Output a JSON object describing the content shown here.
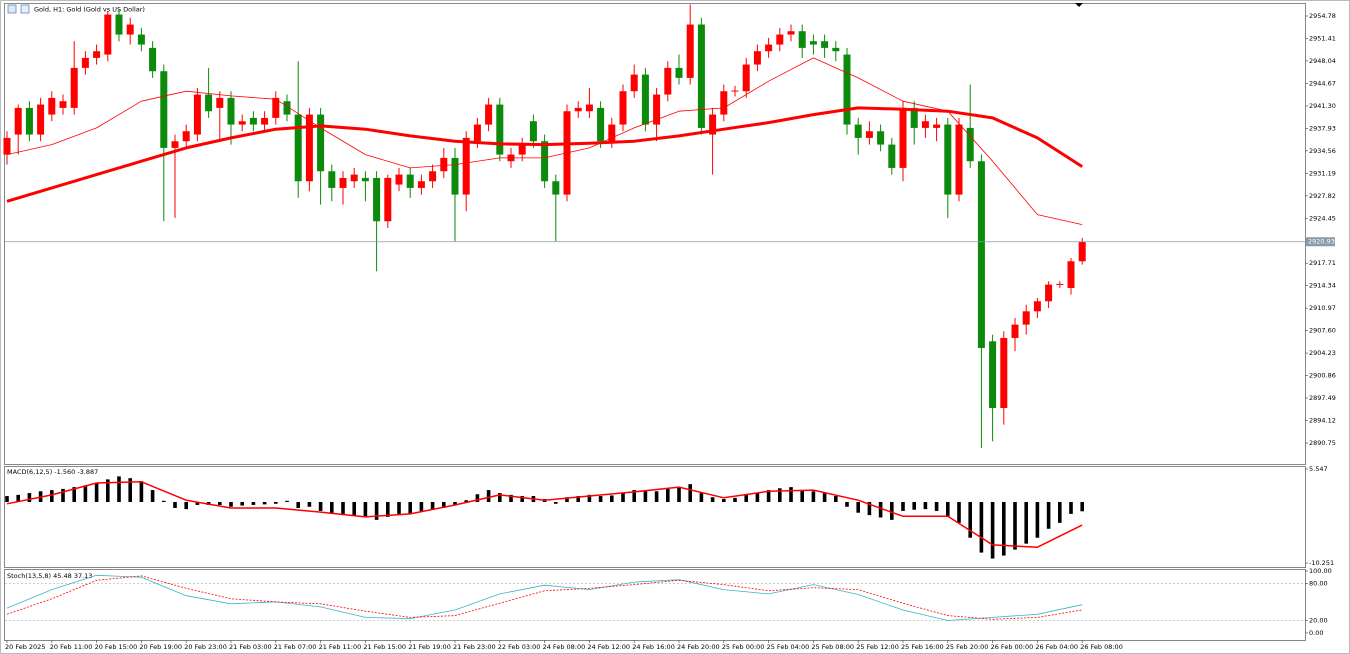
{
  "chart_data": [
    {
      "type": "candlestick",
      "title": "Gold, H1:  Gold (Gold vs US Dollar)",
      "categories": [
        "20 Feb 2025",
        "20 Feb 11:00",
        "20 Feb 15:00",
        "20 Feb 19:00",
        "20 Feb 23:00",
        "21 Feb 03:00",
        "21 Feb 07:00",
        "21 Feb 11:00",
        "21 Feb 15:00",
        "21 Feb 19:00",
        "21 Feb 23:00",
        "22 Feb 03:00",
        "24 Feb 08:00",
        "24 Feb 12:00",
        "24 Feb 16:00",
        "24 Feb 20:00",
        "25 Feb 00:00",
        "25 Feb 04:00",
        "25 Feb 08:00",
        "25 Feb 12:00",
        "25 Feb 16:00",
        "25 Feb 20:00",
        "26 Feb 00:00",
        "26 Feb 04:00",
        "26 Feb 08:00"
      ],
      "up_color": "#ff0000",
      "down_color": "#0b8a0b",
      "ohlc": [
        [
          2934,
          2937.5,
          2932.5,
          2936.5
        ],
        [
          2937,
          2941.5,
          2934,
          2941
        ],
        [
          2941,
          2942,
          2936,
          2937
        ],
        [
          2937,
          2942.5,
          2936,
          2941.5
        ],
        [
          2940,
          2943.5,
          2939,
          2942.5
        ],
        [
          2941,
          2943,
          2940,
          2942
        ],
        [
          2941,
          2951,
          2940,
          2947
        ],
        [
          2947,
          2949.5,
          2946,
          2948.5
        ],
        [
          2948.5,
          2950.5,
          2947.5,
          2949.5
        ],
        [
          2949,
          2955.5,
          2948,
          2955
        ],
        [
          2955,
          2955.8,
          2951,
          2952
        ],
        [
          2952,
          2954.5,
          2950.5,
          2953.5
        ],
        [
          2952,
          2953,
          2949.5,
          2950.5
        ],
        [
          2950,
          2951,
          2945.5,
          2946.5
        ],
        [
          2946.5,
          2947.5,
          2924,
          2935
        ],
        [
          2935,
          2937,
          2924.5,
          2936
        ],
        [
          2936,
          2938.5,
          2935,
          2937.5
        ],
        [
          2937,
          2944,
          2936,
          2943
        ],
        [
          2943,
          2947,
          2939.5,
          2940.5
        ],
        [
          2941,
          2943.5,
          2936,
          2942.5
        ],
        [
          2942.5,
          2943.5,
          2935.5,
          2938.5
        ],
        [
          2938.5,
          2940,
          2937.5,
          2939
        ],
        [
          2939.5,
          2940.5,
          2937.5,
          2938.5
        ],
        [
          2938.5,
          2940.5,
          2937.5,
          2939.5
        ],
        [
          2939.5,
          2943.5,
          2938.5,
          2942.5
        ],
        [
          2942,
          2943,
          2939,
          2940
        ],
        [
          2940,
          2948,
          2927.5,
          2930
        ],
        [
          2930,
          2941,
          2928.5,
          2940
        ],
        [
          2940,
          2941,
          2926.5,
          2931.5
        ],
        [
          2931.5,
          2932.5,
          2927,
          2929
        ],
        [
          2929,
          2931.5,
          2926.5,
          2930.5
        ],
        [
          2930,
          2932,
          2929,
          2931
        ],
        [
          2930.5,
          2931.5,
          2927,
          2930
        ],
        [
          2930.5,
          2931.5,
          2916.5,
          2924
        ],
        [
          2924,
          2931,
          2923,
          2930.5
        ],
        [
          2929.5,
          2932,
          2928.5,
          2931
        ],
        [
          2931,
          2932,
          2927.5,
          2929
        ],
        [
          2929,
          2931,
          2928,
          2930
        ],
        [
          2930,
          2932.5,
          2929,
          2931.5
        ],
        [
          2931.5,
          2935,
          2930.5,
          2933.5
        ],
        [
          2933.5,
          2935,
          2921,
          2928
        ],
        [
          2928,
          2937.5,
          2925.5,
          2936.5
        ],
        [
          2936,
          2939.5,
          2935,
          2938.5
        ],
        [
          2938.5,
          2942.5,
          2937.5,
          2941.5
        ],
        [
          2941.5,
          2942.5,
          2933,
          2934
        ],
        [
          2933,
          2935,
          2932,
          2934
        ],
        [
          2934,
          2936.5,
          2933,
          2935.5
        ],
        [
          2939,
          2940,
          2935,
          2936
        ],
        [
          2936,
          2937,
          2929,
          2930
        ],
        [
          2930,
          2931,
          2921,
          2928
        ],
        [
          2928,
          2941.5,
          2927,
          2940.5
        ],
        [
          2940.5,
          2942,
          2939.5,
          2941
        ],
        [
          2940.5,
          2944,
          2939.5,
          2941.5
        ],
        [
          2941,
          2942,
          2935,
          2936
        ],
        [
          2936,
          2939.5,
          2935,
          2938.5
        ],
        [
          2938.5,
          2944.5,
          2937.5,
          2943.5
        ],
        [
          2943.5,
          2947.5,
          2942.5,
          2946
        ],
        [
          2946,
          2947,
          2937.5,
          2938.5
        ],
        [
          2938.5,
          2944,
          2936,
          2943
        ],
        [
          2943,
          2948,
          2942,
          2947
        ],
        [
          2947,
          2949,
          2944.5,
          2945.5
        ],
        [
          2945.5,
          2956.5,
          2944.5,
          2953.5
        ],
        [
          2953.5,
          2954.5,
          2937,
          2938
        ],
        [
          2937,
          2941,
          2931,
          2940
        ],
        [
          2940,
          2944.5,
          2939,
          2943.5
        ],
        [
          2943.5,
          2944.3,
          2942.7,
          2943.6
        ],
        [
          2943.5,
          2948.5,
          2942.5,
          2947.5
        ],
        [
          2947.5,
          2950.5,
          2946.5,
          2949.5
        ],
        [
          2949.5,
          2951.5,
          2948.5,
          2950.5
        ],
        [
          2950.5,
          2953,
          2949.5,
          2952
        ],
        [
          2952,
          2953.5,
          2951,
          2952.5
        ],
        [
          2952.5,
          2953.5,
          2948.5,
          2950
        ],
        [
          2951,
          2952,
          2949,
          2950.5
        ],
        [
          2951,
          2952,
          2948.5,
          2950
        ],
        [
          2950,
          2951,
          2948,
          2949.5
        ],
        [
          2949,
          2950,
          2937,
          2938.5
        ],
        [
          2938.5,
          2939.5,
          2934,
          2936.5
        ],
        [
          2936.5,
          2939,
          2935.5,
          2937.5
        ],
        [
          2937.5,
          2938.5,
          2934.5,
          2935.5
        ],
        [
          2935.5,
          2936.5,
          2931,
          2932
        ],
        [
          2932,
          2942,
          2930,
          2941
        ],
        [
          2941,
          2942,
          2935.5,
          2938
        ],
        [
          2938,
          2940,
          2936.5,
          2939
        ],
        [
          2938,
          2939.5,
          2936,
          2938.5
        ],
        [
          2938.5,
          2939.5,
          2924.5,
          2928
        ],
        [
          2928,
          2939.5,
          2927,
          2938.5
        ],
        [
          2938,
          2944.5,
          2932,
          2933
        ],
        [
          2933,
          2934,
          2890,
          2905
        ],
        [
          2906,
          2907,
          2891,
          2896
        ],
        [
          2896,
          2907.5,
          2893.5,
          2906.5
        ],
        [
          2906.5,
          2909.5,
          2904.5,
          2908.5
        ],
        [
          2908.5,
          2911.5,
          2907,
          2910.5
        ],
        [
          2910.5,
          2912.5,
          2909.5,
          2912
        ],
        [
          2912,
          2915,
          2911,
          2914.5
        ],
        [
          2914.5,
          2915,
          2914,
          2914.6
        ],
        [
          2914,
          2918.5,
          2913,
          2918
        ],
        [
          2918,
          2921.5,
          2917.5,
          2920.93
        ]
      ],
      "series": [
        {
          "color": "#ff0000",
          "line_width": 0.8,
          "values": [
            2934.0,
            2935.5,
            2938.0,
            2942.0,
            2943.5,
            2942.8,
            2942.3,
            2938.0,
            2934.0,
            2932.0,
            2932.5,
            2933.5,
            2933.5,
            2935.0,
            2938.0,
            2940.5,
            2941.0,
            2945.0,
            2948.5,
            2945.5,
            2942.0,
            2940.5,
            2933.0,
            2925.0,
            2923.5
          ]
        },
        {
          "color": "#ff0000",
          "line_width": 3,
          "values": [
            2927.0,
            2929.0,
            2931.0,
            2933.0,
            2935.0,
            2936.5,
            2937.8,
            2938.3,
            2937.8,
            2936.8,
            2936.0,
            2935.6,
            2935.5,
            2935.7,
            2936.0,
            2936.8,
            2937.8,
            2938.8,
            2940.0,
            2941.0,
            2940.8,
            2940.5,
            2939.5,
            2936.5,
            2932.2
          ]
        }
      ],
      "current_price": 2920.93,
      "ylim": [
        2887.6,
        2956.58
      ],
      "yticks": [
        2954.78,
        2951.41,
        2948.04,
        2944.67,
        {
          "value": 2941.3,
          "label": "2941.30"
        },
        2937.93,
        2934.56,
        2931.19,
        2927.82,
        2924.45,
        2917.71,
        2914.34,
        2910.97,
        {
          "value": 2907.6,
          "label": "2907.60"
        },
        2904.23,
        2900.86,
        2897.49,
        2894.12,
        2890.75
      ]
    },
    {
      "type": "bar",
      "title": "MACD(6,12,5) -1.560 -3.887",
      "color": "#000000",
      "values": [
        1.0,
        1.2,
        1.5,
        1.8,
        2.0,
        2.2,
        2.5,
        2.8,
        3.2,
        3.8,
        4.3,
        4.0,
        3.5,
        2.0,
        0.2,
        -1.0,
        -1.2,
        -0.5,
        -0.5,
        -0.5,
        -0.8,
        -0.6,
        -0.5,
        -0.4,
        -0.3,
        0.2,
        -1.0,
        -0.8,
        -1.5,
        -2.0,
        -2.2,
        -2.3,
        -2.5,
        -3.0,
        -2.5,
        -2.0,
        -2.0,
        -1.6,
        -1.3,
        -1.0,
        -0.6,
        0.3,
        1.3,
        2.0,
        1.5,
        1.2,
        1.0,
        1.0,
        0.5,
        -0.3,
        0.8,
        1.0,
        1.2,
        1.0,
        1.1,
        1.5,
        2.0,
        2.0,
        1.8,
        2.2,
        2.5,
        3.0,
        1.5,
        0.8,
        0.5,
        0.7,
        1.2,
        1.5,
        2.0,
        2.3,
        2.5,
        2.0,
        1.8,
        1.5,
        1.0,
        -0.8,
        -1.8,
        -2.2,
        -2.6,
        -3.0,
        -1.5,
        -1.3,
        -1.2,
        -1.5,
        -2.5,
        -3.5,
        -6.0,
        -8.5,
        -9.5,
        -9.0,
        -8.0,
        -7.0,
        -6.0,
        -4.5,
        -3.5,
        -2.0,
        -1.56
      ],
      "series": [
        {
          "color": "#ff0000",
          "line_width": 1.5,
          "values": [
            -0.3,
            1.2,
            3.2,
            3.4,
            0.3,
            -1.0,
            -1.0,
            -1.7,
            -2.5,
            -2.0,
            -0.5,
            1.2,
            0.3,
            1.0,
            1.7,
            2.5,
            0.7,
            1.8,
            2.0,
            0.3,
            -2.4,
            -2.4,
            -7.2,
            -7.6,
            -3.887
          ]
        }
      ],
      "ylim": [
        -10.92,
        5.88
      ],
      "yticks": [
        5.547,
        -10.251
      ]
    },
    {
      "type": "line",
      "title": "Stoch(13,5,8) 45.48 37.13",
      "series": [
        {
          "color": "#3cb4c8",
          "line_width": 0.8,
          "values": [
            40,
            70,
            93,
            90,
            60,
            47,
            50,
            42,
            25,
            23,
            37,
            63,
            77,
            70,
            82,
            86,
            70,
            63,
            78,
            62,
            37,
            20,
            25,
            30,
            45.48
          ]
        },
        {
          "color": "#ff0000",
          "line_width": 0.8,
          "dashed": true,
          "values": [
            30,
            55,
            85,
            92,
            72,
            55,
            50,
            47,
            35,
            25,
            28,
            48,
            68,
            72,
            78,
            85,
            78,
            68,
            73,
            70,
            48,
            28,
            22,
            25,
            37.13
          ]
        }
      ],
      "ylim": [
        -11.5,
        101.6
      ],
      "yticks": [
        {
          "value": 100,
          "label": "100.00"
        },
        {
          "value": 80,
          "label": "80.00"
        },
        {
          "value": 20,
          "label": "20.00"
        },
        {
          "value": 0,
          "label": "0.00"
        }
      ],
      "levels": [
        80,
        20
      ]
    }
  ]
}
